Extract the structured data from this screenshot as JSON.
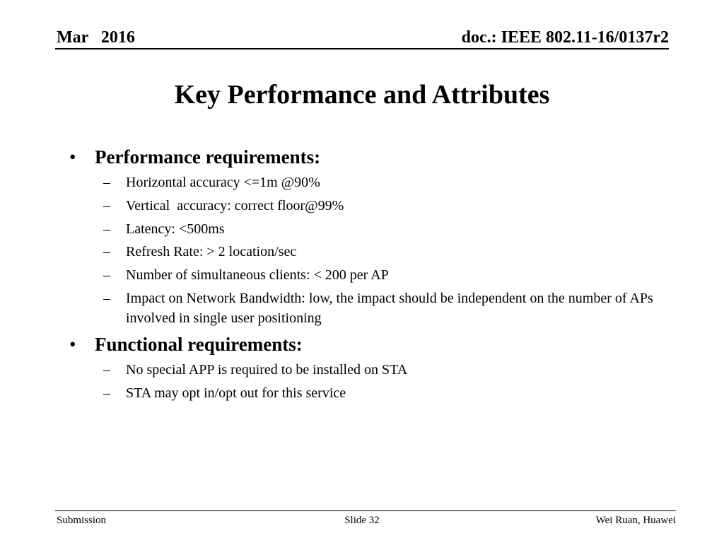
{
  "header": {
    "date": "Mar   2016",
    "doc": "doc.: IEEE 802.11-16/0137r2"
  },
  "title": "Key Performance and Attributes",
  "sections": [
    {
      "bullet": "•",
      "heading": "Performance requirements:",
      "items": [
        "Horizontal accuracy <=1m @90%",
        "Vertical  accuracy: correct floor@99%",
        "Latency: <500ms",
        "Refresh Rate: > 2 location/sec",
        "Number of simultaneous clients: < 200 per AP",
        "Impact on Network Bandwidth: low, the impact should be independent on the number of APs involved in single user positioning"
      ]
    },
    {
      "bullet": "•",
      "heading": "Functional requirements:",
      "items": [
        "No special APP is required to be installed on STA",
        "STA may opt in/opt out for this service"
      ]
    }
  ],
  "sub_bullet": "–",
  "footer": {
    "left": "Submission",
    "center": "Slide 32",
    "right": "Wei Ruan, Huawei"
  }
}
